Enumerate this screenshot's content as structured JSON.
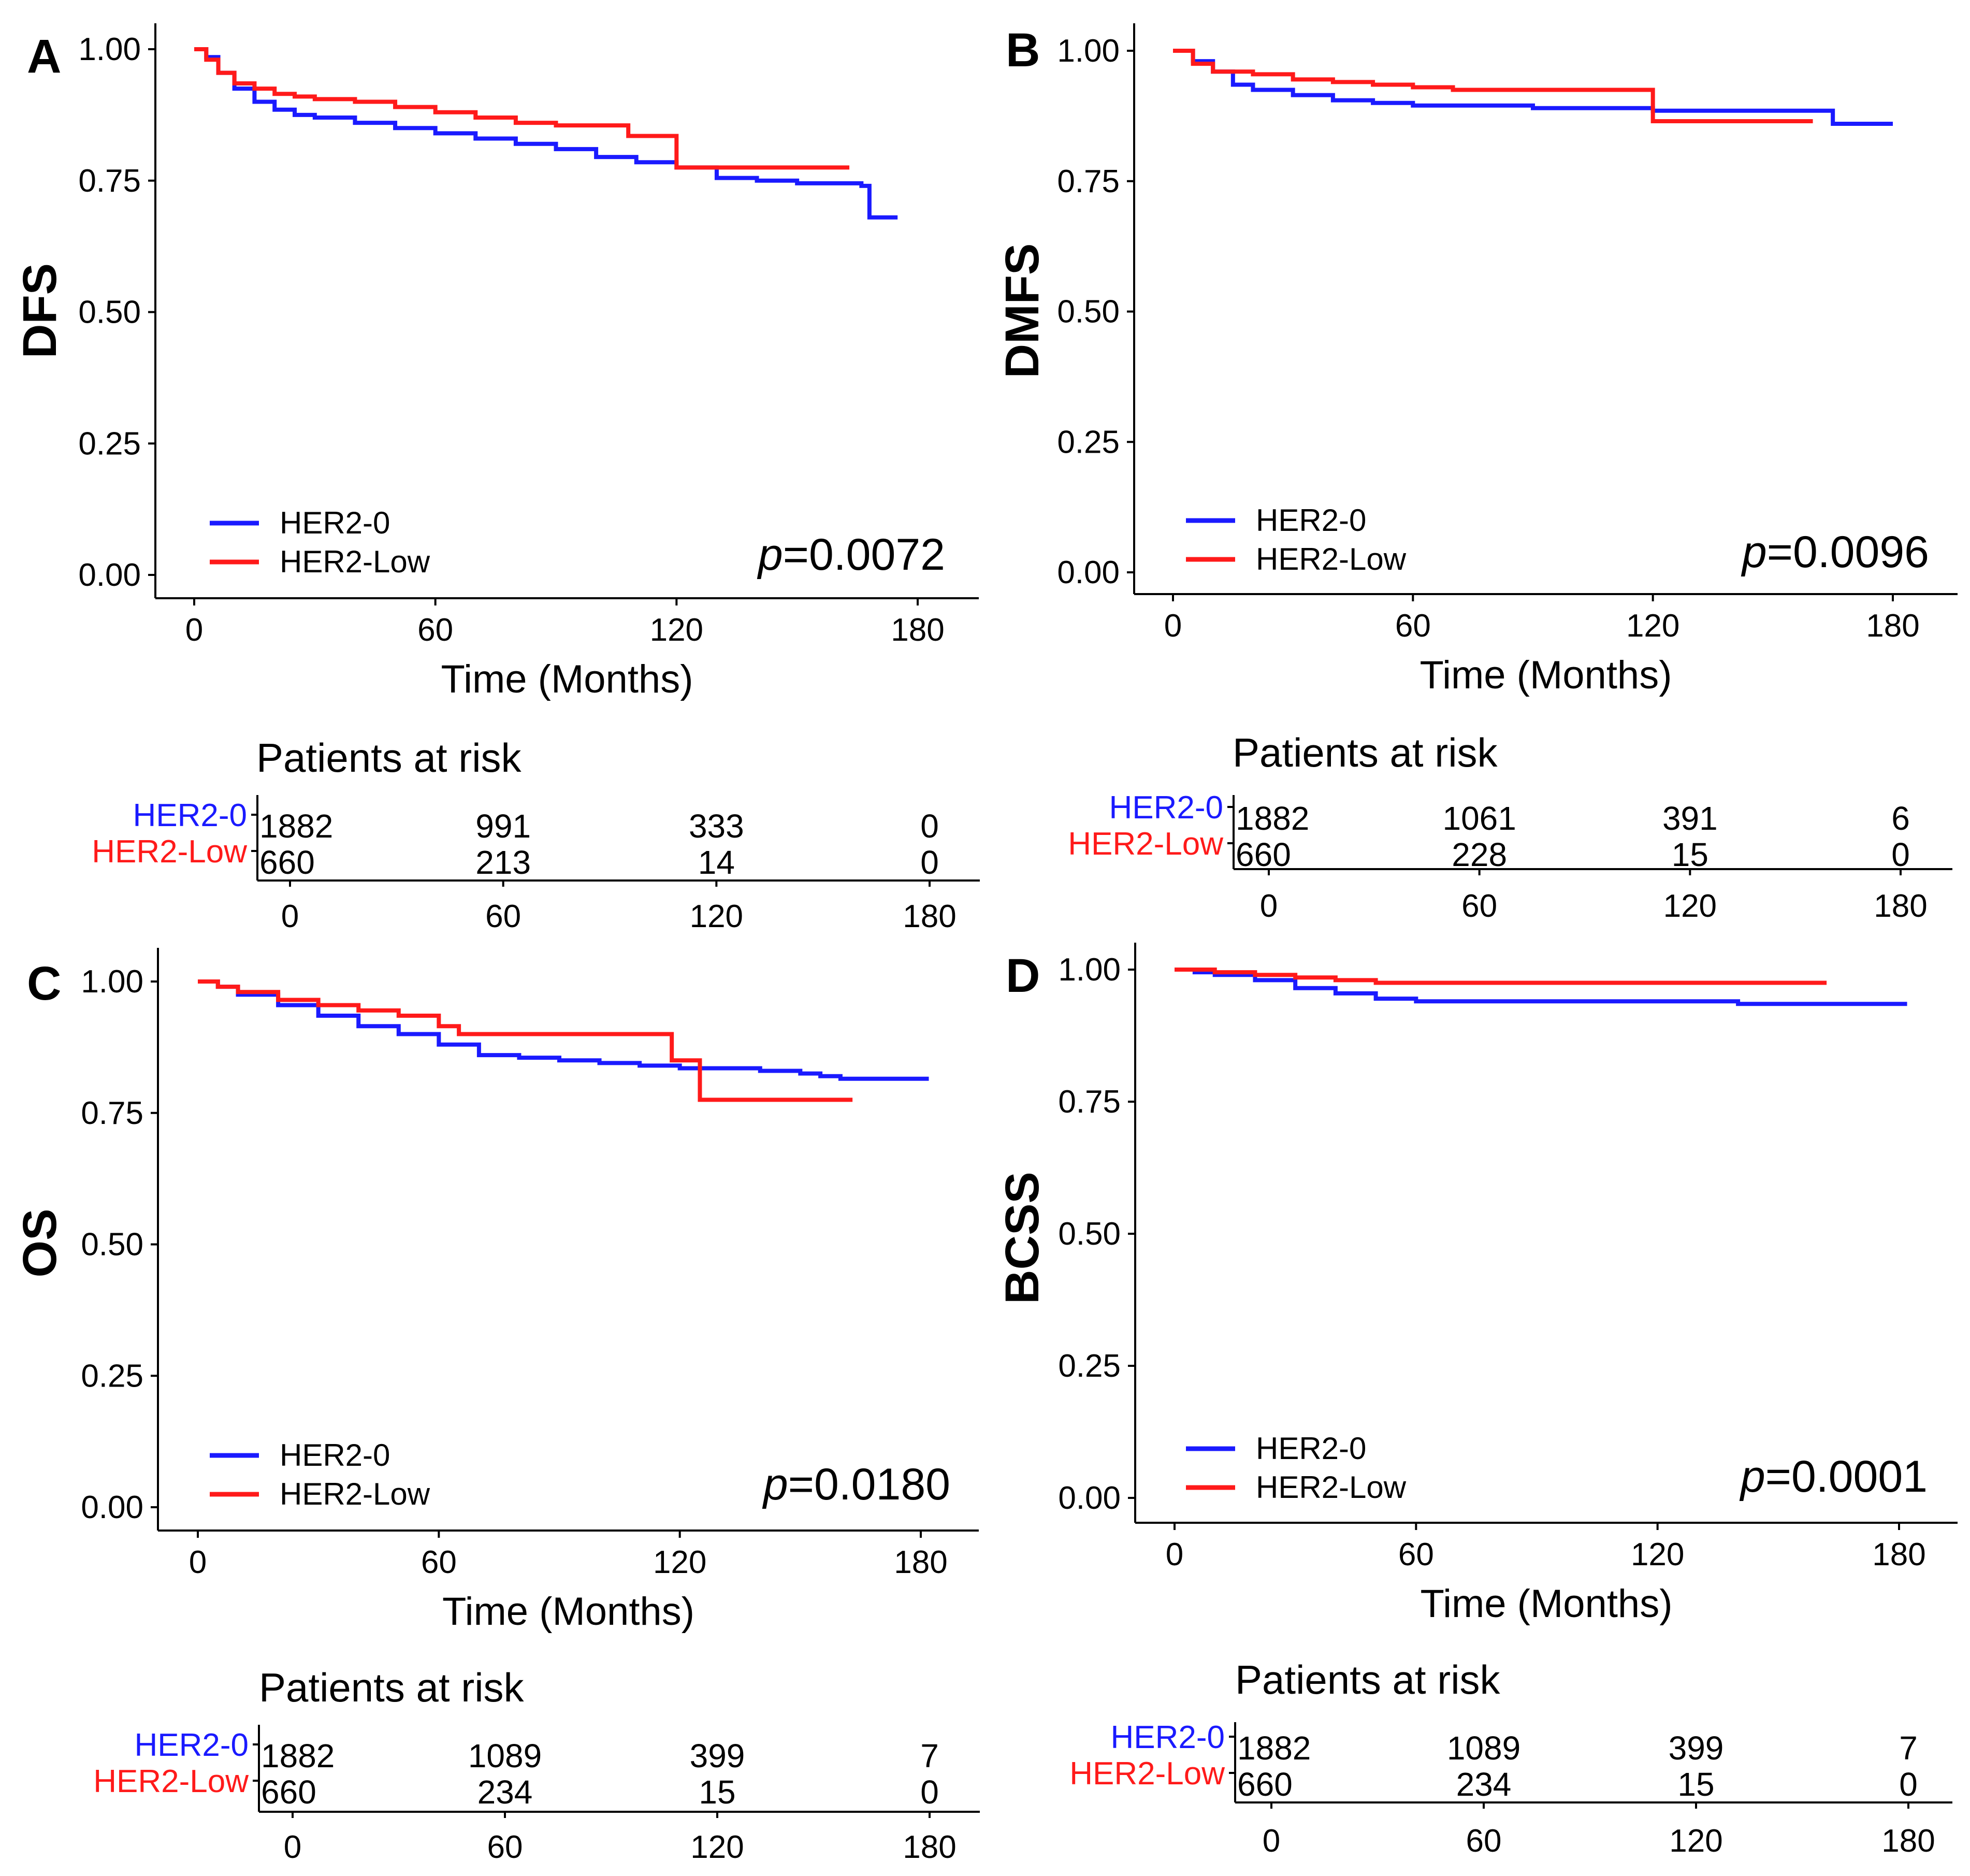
{
  "colors": {
    "her2_0": "#1a1aff",
    "her2_low": "#ff1a1a"
  },
  "risk_title": "Patients at risk",
  "risk_times": [
    "0",
    "60",
    "120",
    "180"
  ],
  "chart_data": [
    {
      "panel": "A",
      "type": "line",
      "step": true,
      "ylabel": "DFS",
      "xlabel": "Time (Months)",
      "x_ticks": [
        0,
        60,
        120,
        180
      ],
      "y_ticks": [
        "0.00",
        "0.25",
        "0.50",
        "0.75",
        "1.00"
      ],
      "xlim": [
        0,
        180
      ],
      "ylim": [
        0,
        1
      ],
      "legend": [
        "HER2-0",
        "HER2-Low"
      ],
      "p_symbol": "p",
      "p_value": "=0.0072",
      "series": [
        {
          "name": "HER2-0",
          "color": "#1a1aff",
          "x": [
            0,
            3,
            6,
            10,
            15,
            20,
            25,
            30,
            40,
            50,
            60,
            70,
            80,
            90,
            100,
            110,
            120,
            130,
            140,
            150,
            160,
            166,
            168,
            175
          ],
          "y": [
            1.0,
            0.985,
            0.955,
            0.925,
            0.9,
            0.885,
            0.875,
            0.87,
            0.86,
            0.85,
            0.84,
            0.83,
            0.82,
            0.81,
            0.795,
            0.785,
            0.775,
            0.755,
            0.75,
            0.745,
            0.745,
            0.74,
            0.68,
            0.68
          ]
        },
        {
          "name": "HER2-Low",
          "color": "#ff1a1a",
          "x": [
            0,
            3,
            6,
            10,
            15,
            20,
            25,
            30,
            40,
            50,
            60,
            70,
            80,
            90,
            100,
            108,
            120,
            135,
            150,
            163
          ],
          "y": [
            1.0,
            0.98,
            0.955,
            0.935,
            0.925,
            0.915,
            0.91,
            0.905,
            0.9,
            0.89,
            0.88,
            0.87,
            0.86,
            0.855,
            0.855,
            0.835,
            0.775,
            0.775,
            0.775,
            0.775
          ]
        }
      ]
    },
    {
      "panel": "B",
      "type": "line",
      "step": true,
      "ylabel": "DMFS",
      "xlabel": "Time (Months)",
      "x_ticks": [
        0,
        60,
        120,
        180
      ],
      "y_ticks": [
        "0.00",
        "0.25",
        "0.50",
        "0.75",
        "1.00"
      ],
      "xlim": [
        0,
        180
      ],
      "ylim": [
        0,
        1
      ],
      "legend": [
        "HER2-0",
        "HER2-Low"
      ],
      "p_symbol": "p",
      "p_value": "=0.0096",
      "series": [
        {
          "name": "HER2-0",
          "color": "#1a1aff",
          "x": [
            0,
            5,
            10,
            15,
            20,
            30,
            40,
            50,
            60,
            90,
            120,
            150,
            164,
            165,
            180
          ],
          "y": [
            1.0,
            0.98,
            0.96,
            0.935,
            0.925,
            0.915,
            0.905,
            0.9,
            0.895,
            0.89,
            0.885,
            0.885,
            0.885,
            0.86,
            0.86
          ]
        },
        {
          "name": "HER2-Low",
          "color": "#ff1a1a",
          "x": [
            0,
            5,
            10,
            20,
            30,
            40,
            50,
            60,
            70,
            90,
            110,
            118,
            120,
            140,
            160
          ],
          "y": [
            1.0,
            0.975,
            0.96,
            0.955,
            0.945,
            0.94,
            0.935,
            0.93,
            0.925,
            0.925,
            0.925,
            0.925,
            0.865,
            0.865,
            0.865
          ]
        }
      ]
    },
    {
      "panel": "C",
      "type": "line",
      "step": true,
      "ylabel": "OS",
      "xlabel": "Time (Months)",
      "x_ticks": [
        0,
        60,
        120,
        180
      ],
      "y_ticks": [
        "0.00",
        "0.25",
        "0.50",
        "0.75",
        "1.00"
      ],
      "xlim": [
        0,
        180
      ],
      "ylim": [
        0,
        1
      ],
      "legend": [
        "HER2-0",
        "HER2-Low"
      ],
      "p_symbol": "p",
      "p_value": "=0.0180",
      "series": [
        {
          "name": "HER2-0",
          "color": "#1a1aff",
          "x": [
            0,
            5,
            10,
            20,
            30,
            40,
            50,
            60,
            70,
            80,
            90,
            100,
            110,
            120,
            130,
            140,
            150,
            155,
            160,
            170,
            182
          ],
          "y": [
            1.0,
            0.99,
            0.975,
            0.955,
            0.935,
            0.915,
            0.9,
            0.88,
            0.86,
            0.855,
            0.85,
            0.845,
            0.84,
            0.835,
            0.835,
            0.83,
            0.825,
            0.82,
            0.815,
            0.815,
            0.815
          ]
        },
        {
          "name": "HER2-Low",
          "color": "#ff1a1a",
          "x": [
            0,
            5,
            10,
            20,
            30,
            40,
            50,
            60,
            65,
            80,
            100,
            117,
            118,
            124,
            125,
            140,
            163
          ],
          "y": [
            1.0,
            0.99,
            0.98,
            0.965,
            0.955,
            0.945,
            0.935,
            0.915,
            0.9,
            0.9,
            0.9,
            0.9,
            0.85,
            0.85,
            0.775,
            0.775,
            0.775
          ]
        }
      ]
    },
    {
      "panel": "D",
      "type": "line",
      "step": true,
      "ylabel": "BCSS",
      "xlabel": "Time (Months)",
      "x_ticks": [
        0,
        60,
        120,
        180
      ],
      "y_ticks": [
        "0.00",
        "0.25",
        "0.50",
        "0.75",
        "1.00"
      ],
      "xlim": [
        0,
        180
      ],
      "ylim": [
        0,
        1
      ],
      "legend": [
        "HER2-0",
        "HER2-Low"
      ],
      "p_symbol": "p",
      "p_value": "=0.0001",
      "series": [
        {
          "name": "HER2-0",
          "color": "#1a1aff",
          "x": [
            0,
            5,
            10,
            20,
            30,
            40,
            50,
            60,
            90,
            120,
            140,
            160,
            182
          ],
          "y": [
            1.0,
            0.995,
            0.99,
            0.98,
            0.965,
            0.955,
            0.945,
            0.94,
            0.94,
            0.94,
            0.935,
            0.935,
            0.935
          ]
        },
        {
          "name": "HER2-Low",
          "color": "#ff1a1a",
          "x": [
            0,
            10,
            20,
            30,
            40,
            50,
            60,
            100,
            140,
            162
          ],
          "y": [
            1.0,
            0.995,
            0.99,
            0.985,
            0.98,
            0.975,
            0.975,
            0.975,
            0.975,
            0.975
          ]
        }
      ]
    }
  ],
  "risk_tables": [
    {
      "panel": "A",
      "rows": [
        {
          "name": "HER2-0",
          "values": [
            "1882",
            "991",
            "333",
            "0"
          ]
        },
        {
          "name": "HER2-Low",
          "values": [
            "660",
            "213",
            "14",
            "0"
          ]
        }
      ]
    },
    {
      "panel": "B",
      "rows": [
        {
          "name": "HER2-0",
          "values": [
            "1882",
            "1061",
            "391",
            "6"
          ]
        },
        {
          "name": "HER2-Low",
          "values": [
            "660",
            "228",
            "15",
            "0"
          ]
        }
      ]
    },
    {
      "panel": "C",
      "rows": [
        {
          "name": "HER2-0",
          "values": [
            "1882",
            "1089",
            "399",
            "7"
          ]
        },
        {
          "name": "HER2-Low",
          "values": [
            "660",
            "234",
            "15",
            "0"
          ]
        }
      ]
    },
    {
      "panel": "D",
      "rows": [
        {
          "name": "HER2-0",
          "values": [
            "1882",
            "1089",
            "399",
            "7"
          ]
        },
        {
          "name": "HER2-Low",
          "values": [
            "660",
            "234",
            "15",
            "0"
          ]
        }
      ]
    }
  ]
}
